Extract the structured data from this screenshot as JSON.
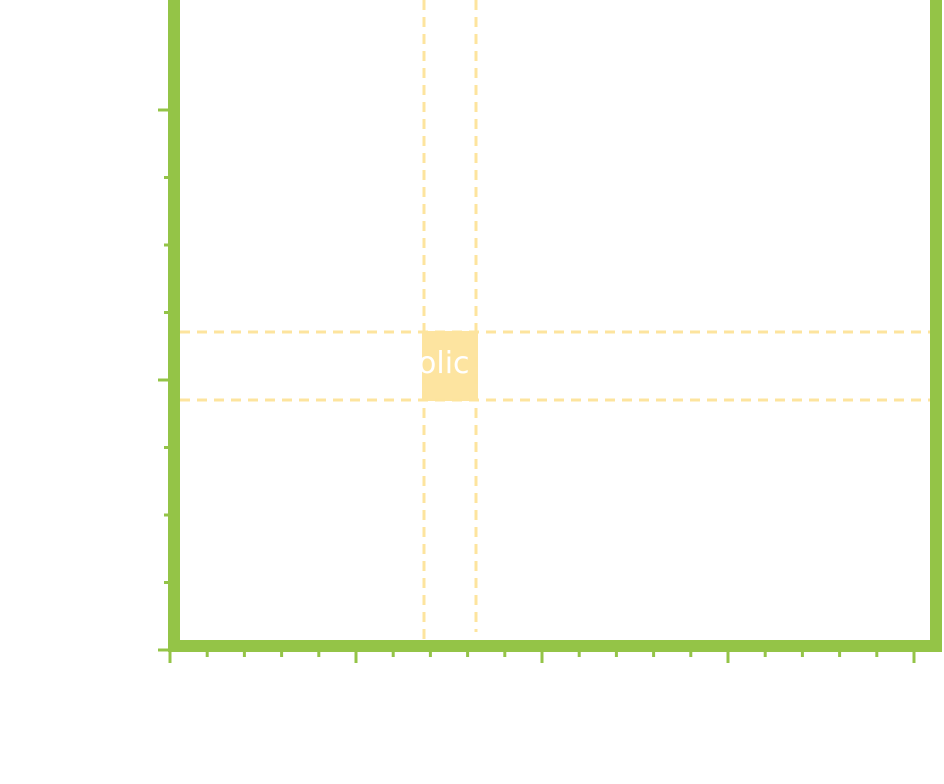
{
  "label": {
    "text": "olic"
  },
  "colors": {
    "axis": "#94c447",
    "highlight": "#fde4a0",
    "guide": "#fde49e",
    "label": "#ffffff"
  }
}
